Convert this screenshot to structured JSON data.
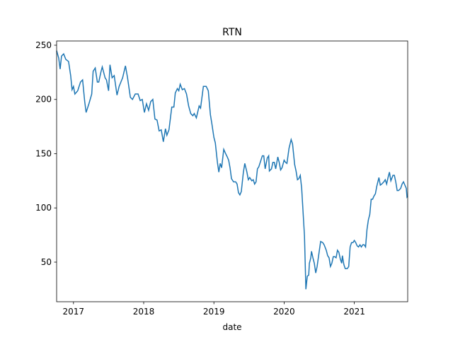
{
  "chart_data": {
    "type": "line",
    "title": "RTN",
    "xlabel": "date",
    "x": [
      2016.76,
      2016.79,
      2016.81,
      2016.83,
      2016.86,
      2016.89,
      2016.93,
      2016.96,
      2016.98,
      2017.0,
      2017.02,
      2017.06,
      2017.1,
      2017.13,
      2017.16,
      2017.18,
      2017.22,
      2017.26,
      2017.28,
      2017.31,
      2017.34,
      2017.36,
      2017.39,
      2017.41,
      2017.45,
      2017.47,
      2017.5,
      2017.52,
      2017.55,
      2017.58,
      2017.62,
      2017.65,
      2017.7,
      2017.74,
      2017.77,
      2017.81,
      2017.84,
      2017.88,
      2017.92,
      2017.95,
      2017.98,
      2018.01,
      2018.04,
      2018.07,
      2018.1,
      2018.13,
      2018.16,
      2018.19,
      2018.22,
      2018.25,
      2018.28,
      2018.31,
      2018.33,
      2018.36,
      2018.4,
      2018.43,
      2018.45,
      2018.48,
      2018.5,
      2018.52,
      2018.55,
      2018.58,
      2018.61,
      2018.64,
      2018.67,
      2018.7,
      2018.72,
      2018.75,
      2018.79,
      2018.81,
      2018.85,
      2018.89,
      2018.92,
      2018.95,
      2018.97,
      2019.0,
      2019.02,
      2019.05,
      2019.07,
      2019.09,
      2019.11,
      2019.14,
      2019.16,
      2019.19,
      2019.21,
      2019.23,
      2019.25,
      2019.28,
      2019.31,
      2019.33,
      2019.35,
      2019.37,
      2019.39,
      2019.42,
      2019.44,
      2019.47,
      2019.49,
      2019.51,
      2019.54,
      2019.56,
      2019.58,
      2019.6,
      2019.62,
      2019.64,
      2019.66,
      2019.69,
      2019.71,
      2019.73,
      2019.76,
      2019.78,
      2019.79,
      2019.82,
      2019.84,
      2019.86,
      2019.88,
      2019.91,
      2019.93,
      2019.95,
      2019.97,
      2020.0,
      2020.02,
      2020.04,
      2020.07,
      2020.1,
      2020.12,
      2020.15,
      2020.17,
      2020.19,
      2020.21,
      2020.23,
      2020.25,
      2020.27,
      2020.29,
      2020.31,
      2020.33,
      2020.35,
      2020.36,
      2020.38,
      2020.39,
      2020.41,
      2020.43,
      2020.45,
      2020.47,
      2020.5,
      2020.52,
      2020.55,
      2020.57,
      2020.6,
      2020.62,
      2020.64,
      2020.66,
      2020.68,
      2020.7,
      2020.72,
      2020.74,
      2020.76,
      2020.78,
      2020.8,
      2020.82,
      2020.83,
      2020.85,
      2020.87,
      2020.9,
      2020.92,
      2020.94,
      2020.96,
      2020.98,
      2021.0,
      2021.02,
      2021.04,
      2021.06,
      2021.08,
      2021.1,
      2021.12,
      2021.14,
      2021.16,
      2021.18,
      2021.2,
      2021.22,
      2021.24,
      2021.26,
      2021.28,
      2021.3,
      2021.32,
      2021.35,
      2021.37,
      2021.39,
      2021.42,
      2021.44,
      2021.46,
      2021.48,
      2021.5,
      2021.52,
      2021.55,
      2021.57,
      2021.59,
      2021.61,
      2021.63,
      2021.66,
      2021.68,
      2021.7,
      2021.72,
      2021.74,
      2021.75,
      2021.76
    ],
    "series": [
      {
        "color": "#1f77b4",
        "values": [
          245,
          238,
          228,
          240,
          242,
          237,
          235,
          222,
          209,
          212,
          205,
          208,
          216,
          218,
          198,
          188,
          196,
          205,
          226,
          229,
          216,
          216,
          225,
          230,
          220,
          218,
          208,
          232,
          220,
          222,
          204,
          212,
          220,
          231,
          220,
          202,
          200,
          205,
          205,
          199,
          200,
          188,
          196,
          190,
          198,
          200,
          182,
          181,
          171,
          172,
          161,
          173,
          167,
          172,
          193,
          193,
          206,
          210,
          208,
          214,
          209,
          210,
          205,
          194,
          187,
          185,
          187,
          183,
          194,
          192,
          212,
          212,
          208,
          186,
          178,
          165,
          160,
          142,
          133,
          141,
          137,
          154,
          151,
          147,
          144,
          137,
          127,
          124,
          124,
          122,
          114,
          112,
          115,
          133,
          141,
          133,
          126,
          128,
          125,
          126,
          122,
          124,
          136,
          138,
          142,
          148,
          148,
          136,
          146,
          148,
          134,
          136,
          142,
          142,
          136,
          147,
          142,
          135,
          137,
          144,
          142,
          141,
          155,
          163,
          159,
          140,
          134,
          126,
          127,
          130,
          118,
          96,
          74,
          25,
          37,
          38,
          49,
          54,
          60,
          54,
          49,
          40,
          46,
          60,
          69,
          68,
          66,
          61,
          56,
          54,
          46,
          49,
          55,
          55,
          54,
          61,
          59,
          53,
          49,
          56,
          48,
          44,
          44,
          46,
          64,
          68,
          68,
          70,
          68,
          65,
          64,
          66,
          64,
          66,
          66,
          64,
          80,
          89,
          94,
          108,
          108,
          111,
          113,
          120,
          128,
          121,
          122,
          124,
          126,
          122,
          128,
          133,
          125,
          130,
          130,
          124,
          116,
          116,
          118,
          122,
          124,
          121,
          118,
          110,
          111
        ]
      }
    ],
    "xlim": [
      2016.76,
      2021.76
    ],
    "xticks": [
      2017,
      2018,
      2019,
      2020,
      2021
    ],
    "ylim": [
      13.5,
      253.9
    ],
    "yticks": [
      50,
      100,
      150,
      200,
      250
    ]
  }
}
